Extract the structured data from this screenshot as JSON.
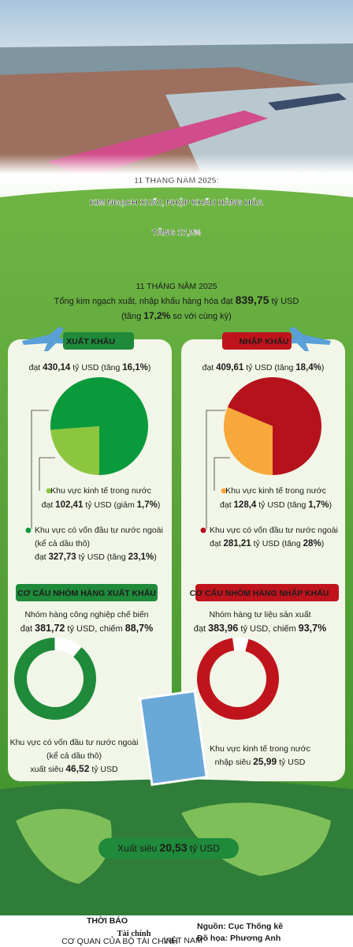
{
  "header": {
    "title_lines": [
      "11 THÁNG NĂM 2025:",
      "KIM NGẠCH XUẤT, NHẬP KHẨU HÀNG HÓA",
      "TĂNG 17,2%"
    ]
  },
  "summary": {
    "period": "11 THÁNG NĂM 2025",
    "total": [
      "Tổng kim ngạch xuất, nhập khẩu hàng hóa đạt ",
      "839,75",
      " tỷ USD"
    ],
    "growth": [
      "(tăng ",
      "17,2%",
      " so với cùng kỳ)"
    ]
  },
  "export": {
    "label": "XUẤT KHẨU",
    "total": [
      "đạt ",
      "430,14",
      " tỷ USD (tăng ",
      "16,1%",
      ")"
    ],
    "pie": {
      "values": [
        102.41,
        327.73
      ],
      "colors": [
        "#8cc63f",
        "#0a9a3c"
      ]
    },
    "domestic": {
      "name": "Khu vực kinh tế trong nước",
      "text": [
        "đạt ",
        "102,41",
        " tỷ USD (giảm ",
        "1,7%",
        ")"
      ]
    },
    "fdi": {
      "lines": [
        "Khu vực có vốn đầu tư nước ngoài",
        "(kể cả dầu thô)"
      ],
      "text": [
        "đạt ",
        "327,73",
        " tỷ USD (tăng ",
        "23,1%",
        ")"
      ]
    },
    "structure": {
      "label": "CƠ CẤU NHÓM HÀNG XUẤT KHẨU",
      "group": "Nhóm hàng công nghiệp chế biến",
      "text": [
        "đạt ",
        "381,72",
        " tỷ USD, chiếm ",
        "88,7%"
      ],
      "share": 88.7,
      "color": "#1f8a3a"
    },
    "balance": {
      "lines": [
        "Khu vực có vốn đầu tư nước ngoài",
        "(kể cả dầu thô)"
      ],
      "text": [
        "xuất siêu ",
        "46,52",
        " tỷ USD"
      ]
    }
  },
  "import": {
    "label": "NHẬP KHẨU",
    "total": [
      "đạt ",
      "409,61",
      " tỷ USD (tăng ",
      "18,4%",
      ")"
    ],
    "pie": {
      "values": [
        128.4,
        281.21
      ],
      "colors": [
        "#f7a83a",
        "#b5121b"
      ]
    },
    "domestic": {
      "name": "Khu vực kinh tế trong nước",
      "text": [
        "đạt ",
        "128,4",
        " tỷ USD (tăng ",
        "1,7%",
        ")"
      ]
    },
    "fdi": {
      "lines": [
        "Khu vực có vốn đầu tư nước ngoài"
      ],
      "text": [
        "đạt ",
        "281,21",
        " tỷ USD (tăng ",
        "28%",
        ")"
      ]
    },
    "structure": {
      "label": "CƠ CẤU NHÓM HÀNG NHẬP KHẨU",
      "group": "Nhóm hàng tư liệu sản xuất",
      "text": [
        "đạt ",
        "383,96",
        " tỷ USD, chiếm ",
        "93,7%"
      ],
      "share": 93.7,
      "color": "#c0141c"
    },
    "balance": {
      "lines": [
        "Khu vực kinh tế trong nước"
      ],
      "text": [
        "nhập siêu ",
        "25,99",
        " tỷ USD"
      ]
    }
  },
  "trade_surplus": [
    "Xuất siêu ",
    "20,53",
    " tỷ USD"
  ],
  "footer": {
    "brand_small": "THỜI BÁO",
    "brand": "Tài chính",
    "brand_sub": "VIỆT NAM",
    "tagline": "CƠ QUAN CỦA BỘ TÀI CHÍNH",
    "source": "Nguồn: Cục Thống kê",
    "credit": "Đồ họa: Phương Anh"
  }
}
